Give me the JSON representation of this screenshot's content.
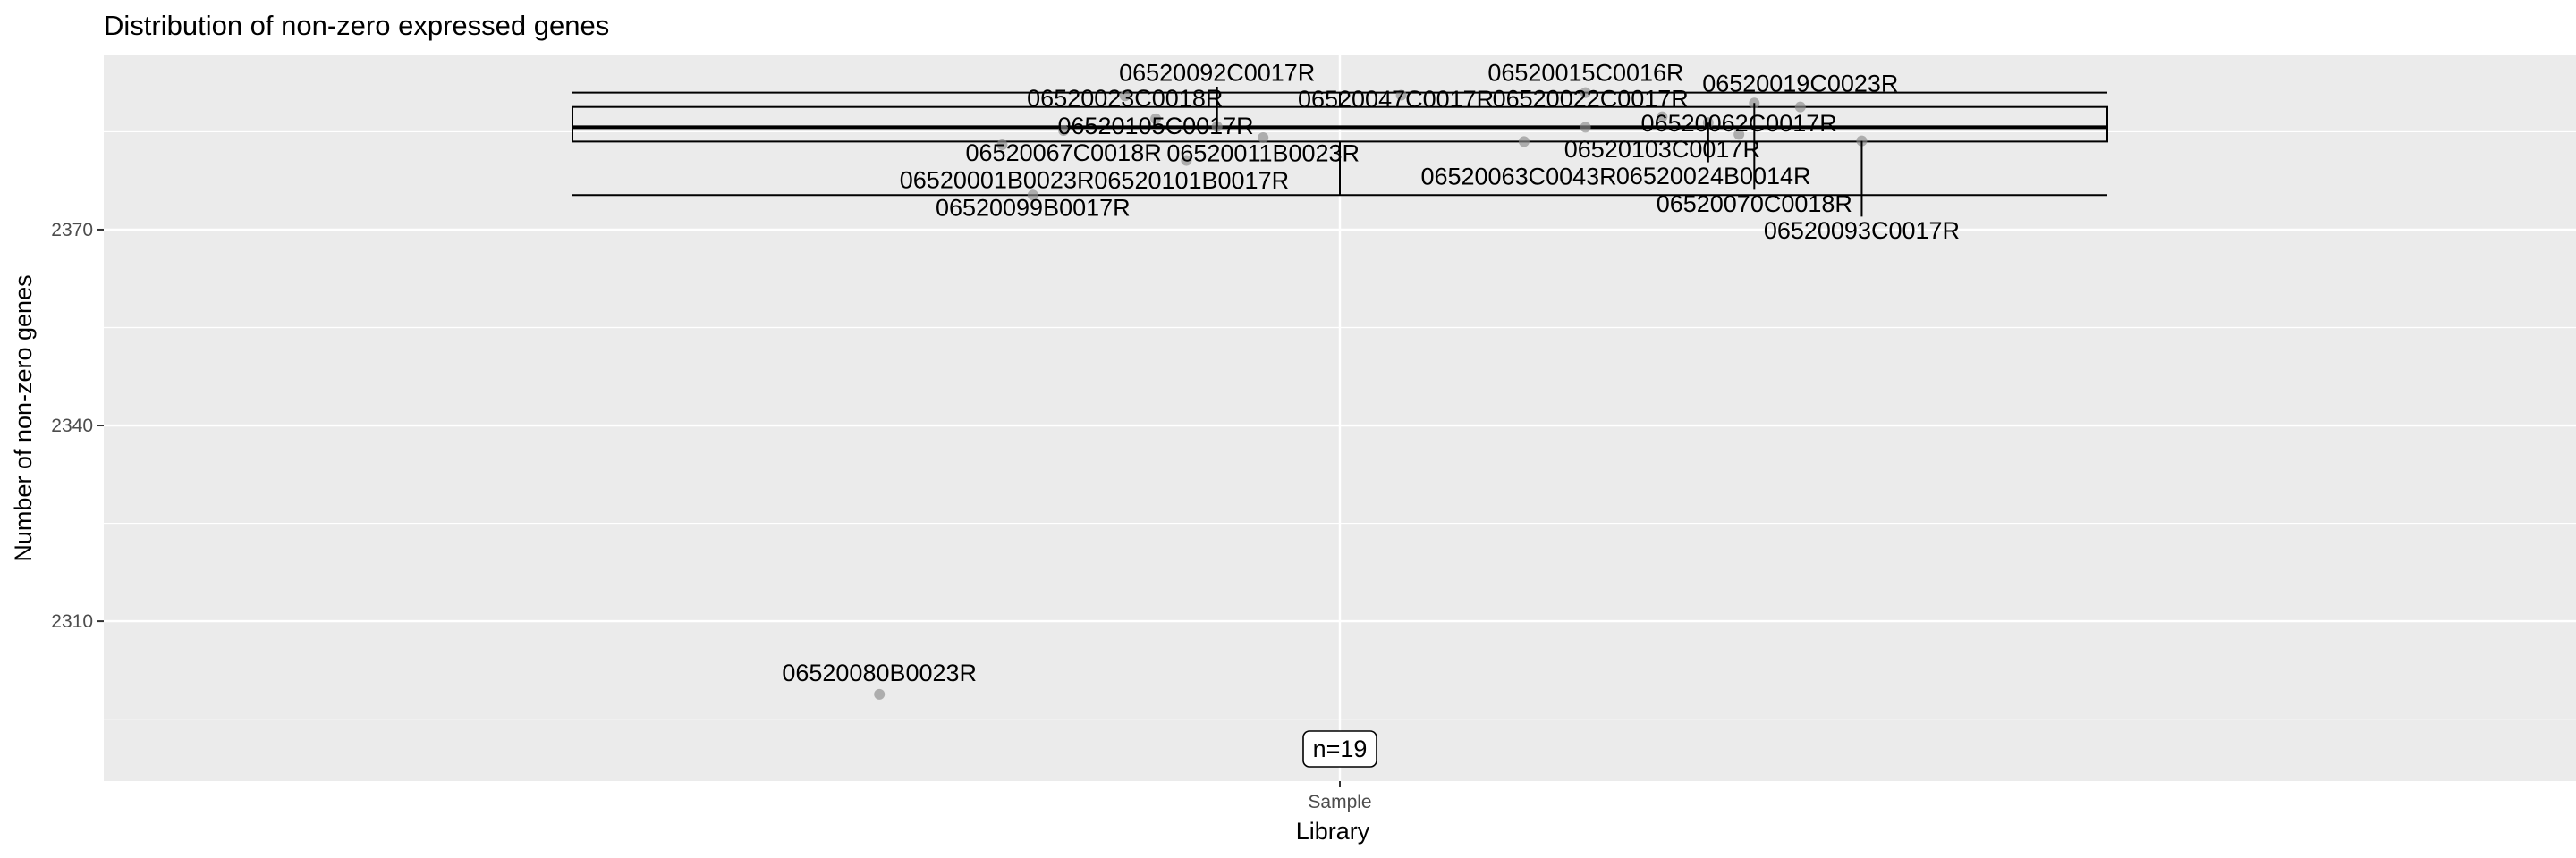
{
  "chart_data": {
    "type": "boxplot-jitter",
    "title": "Distribution of non-zero expressed genes",
    "xlabel": "Library",
    "ylabel": "Number of non-zero genes",
    "categories": [
      "Sample"
    ],
    "yticks": [
      2310,
      2340,
      2370
    ],
    "ylim": [
      2285.5,
      2396.7
    ],
    "box": {
      "min": 2375.3,
      "q1": 2383.5,
      "median": 2385.7,
      "q3": 2388.8,
      "max": 2391.0
    },
    "count_label": "n=19",
    "points": [
      {
        "label": "06520080B0023R",
        "value": 2298.8,
        "jitter": -0.3
      },
      {
        "label": "06520099B0017R",
        "value": 2375.3,
        "jitter": -0.2
      },
      {
        "label": "06520101B0017R",
        "value": 2380.6,
        "jitter": -0.1
      },
      {
        "label": "06520001B0023R",
        "value": 2383.0,
        "jitter": -0.22
      },
      {
        "label": "06520011B0023R",
        "value": 2384.1,
        "jitter": -0.05
      },
      {
        "label": "06520063C0043R",
        "value": 2383.5,
        "jitter": 0.12
      },
      {
        "label": "06520062C0017R",
        "value": 2384.6,
        "jitter": 0.26
      },
      {
        "label": "06520093C0017R",
        "value": 2383.6,
        "jitter": 0.34
      },
      {
        "label": "06520067C0018R",
        "value": 2385.2,
        "jitter": -0.18
      },
      {
        "label": "06520022C0017R",
        "value": 2385.7,
        "jitter": 0.16
      },
      {
        "label": "06520092C0017R",
        "value": 2385.8,
        "jitter": -0.08
      },
      {
        "label": "06520024B0014R",
        "value": 2386.4,
        "jitter": 0.24
      },
      {
        "label": "06520105C0017R",
        "value": 2387.0,
        "jitter": -0.12
      },
      {
        "label": "06520103C0017R",
        "value": 2387.3,
        "jitter": 0.21
      },
      {
        "label": "06520019C0023R",
        "value": 2388.8,
        "jitter": 0.3
      },
      {
        "label": "06520070C0018R",
        "value": 2389.4,
        "jitter": 0.27
      },
      {
        "label": "06520023C0018R",
        "value": 2390.5,
        "jitter": -0.14
      },
      {
        "label": "06520047C0017R",
        "value": 2390.6,
        "jitter": 0.04
      },
      {
        "label": "06520015C0016R",
        "value": 2391.0,
        "jitter": 0.16
      }
    ]
  }
}
